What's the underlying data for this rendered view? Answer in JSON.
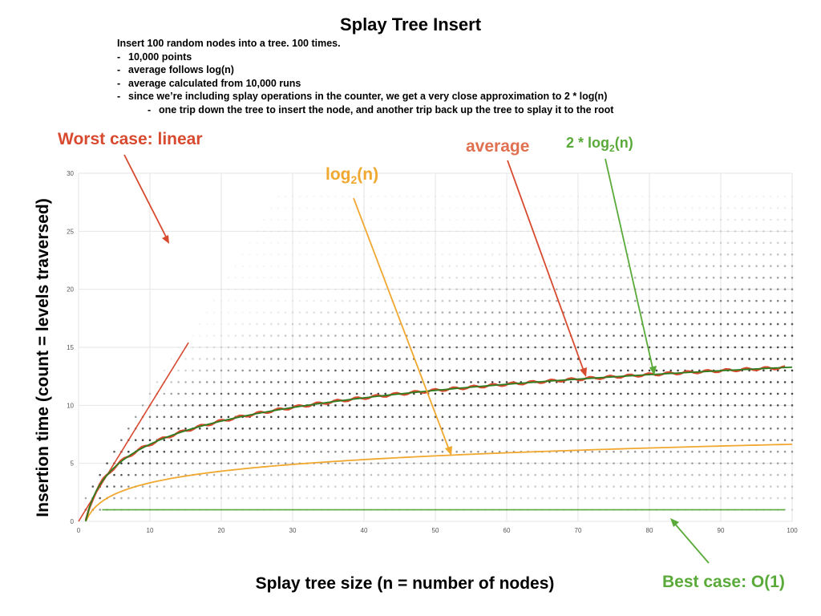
{
  "header": {
    "title": "Splay Tree Insert",
    "intro": "Insert 100 random nodes into a tree. 100 times.",
    "bullets": [
      "10,000 points",
      "average follows log(n)",
      "average calculated from 10,000 runs",
      "since we’re including splay operations in the counter, we get a very close approximation to 2 * log(n)"
    ],
    "sub_bullet": "one trip down the tree to insert the node, and another trip back up the tree to splay it to the root",
    "bullet_marker": "-"
  },
  "chart_data": {
    "type": "scatter",
    "title": "Splay Tree Insert",
    "xlabel": "Splay tree size (n = number of nodes)",
    "ylabel": "Insertion time (count = levels traversed)",
    "xlim": [
      0,
      100
    ],
    "ylim": [
      0,
      30
    ],
    "x_ticks": [
      0,
      10,
      20,
      30,
      40,
      50,
      60,
      70,
      80,
      90,
      100
    ],
    "y_ticks": [
      0,
      5,
      10,
      15,
      20,
      25,
      30
    ],
    "grid": true,
    "series": [
      {
        "name": "average",
        "color": "#d84a30",
        "formula": "2*log2(n)",
        "x_range": [
          1,
          99
        ]
      },
      {
        "name": "2 * log2(n)",
        "color": "#2e7d1f",
        "formula": "2*log2(n)",
        "x_range": [
          1,
          100
        ]
      },
      {
        "name": "log2(n)",
        "color": "#f0a830",
        "formula": "log2(n)",
        "x_range": [
          1,
          100
        ]
      },
      {
        "name": "Worst case: linear",
        "color": "#d84a30",
        "formula": "n",
        "x_range": [
          0,
          15.4
        ]
      },
      {
        "name": "Best case: O(1)",
        "color": "#5aaa3a",
        "formula": "1",
        "x_range": [
          3.3,
          99
        ]
      }
    ],
    "scatter": {
      "y_min": 1,
      "y_max": 28,
      "color": "#000000",
      "x_step": 1,
      "y_step": 1
    },
    "annotations": [
      {
        "id": "worst",
        "text": "Worst case: linear",
        "color": "#d84a30"
      },
      {
        "id": "average",
        "text": "average",
        "color": "#e07050"
      },
      {
        "id": "twolog",
        "text_pre": "2 * log",
        "sub": "2",
        "text_post": "(n)",
        "color": "#5aaa3a"
      },
      {
        "id": "log",
        "text_pre": "log",
        "sub": "2",
        "text_post": "(n)",
        "color": "#f0a830"
      },
      {
        "id": "best",
        "text": "Best case: O(1)",
        "color": "#5aaa3a"
      }
    ]
  }
}
